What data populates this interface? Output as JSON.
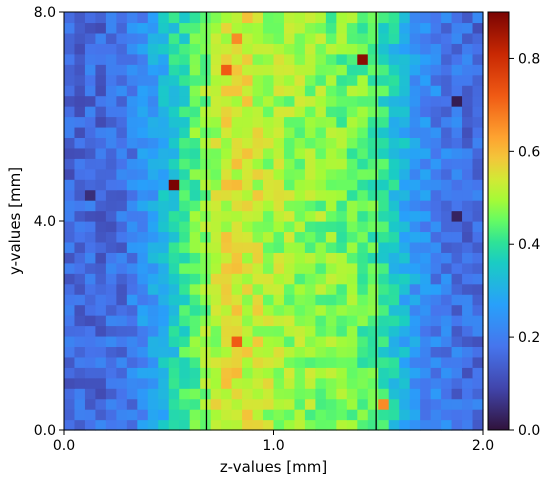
{
  "chart_data": {
    "type": "heatmap",
    "title": "",
    "xlabel": "z-values [mm]",
    "ylabel": "y-values [mm]",
    "xlim": [
      0.0,
      2.0
    ],
    "ylim": [
      0.0,
      8.0
    ],
    "x_ticks": [
      {
        "value": 0.0,
        "label": "0.0"
      },
      {
        "value": 1.0,
        "label": "1.0"
      },
      {
        "value": 2.0,
        "label": "2.0"
      }
    ],
    "y_ticks": [
      {
        "value": 0.0,
        "label": "0.0"
      },
      {
        "value": 4.0,
        "label": "4.0"
      },
      {
        "value": 8.0,
        "label": "8.0"
      }
    ],
    "colorbar": {
      "colormap": "turbo",
      "range": [
        0.0,
        0.9
      ],
      "ticks": [
        {
          "value": 0.0,
          "label": "0.0"
        },
        {
          "value": 0.2,
          "label": "0.2"
        },
        {
          "value": 0.4,
          "label": "0.4"
        },
        {
          "value": 0.6,
          "label": "0.6"
        },
        {
          "value": 0.8,
          "label": "0.8"
        }
      ]
    },
    "vertical_lines": [
      0.68,
      1.49
    ],
    "grid": false,
    "grid_shape": {
      "nx": 40,
      "ny": 40
    },
    "z_profile": {
      "z": [
        0.0,
        0.1,
        0.2,
        0.3,
        0.4,
        0.5,
        0.6,
        0.7,
        0.8,
        0.9,
        1.0,
        1.1,
        1.2,
        1.3,
        1.4,
        1.5,
        1.6,
        1.7,
        1.8,
        1.9,
        2.0
      ],
      "value": [
        0.15,
        0.16,
        0.16,
        0.18,
        0.25,
        0.34,
        0.42,
        0.5,
        0.55,
        0.53,
        0.5,
        0.49,
        0.48,
        0.46,
        0.45,
        0.42,
        0.33,
        0.24,
        0.2,
        0.17,
        0.16
      ]
    },
    "hot_spots": [
      {
        "z": 0.5,
        "y": 4.8,
        "value": 0.9
      },
      {
        "z": 1.45,
        "y": 7.0,
        "value": 0.88
      },
      {
        "z": 0.78,
        "y": 6.8,
        "value": 0.72
      },
      {
        "z": 0.8,
        "y": 1.6,
        "value": 0.72
      },
      {
        "z": 0.82,
        "y": 7.6,
        "value": 0.66
      },
      {
        "z": 1.52,
        "y": 0.6,
        "value": 0.66
      }
    ],
    "cold_spots": [
      {
        "z": 1.9,
        "y": 6.3,
        "value": 0.02
      },
      {
        "z": 1.9,
        "y": 4.0,
        "value": 0.03
      },
      {
        "z": 0.1,
        "y": 4.4,
        "value": 0.05
      }
    ]
  }
}
